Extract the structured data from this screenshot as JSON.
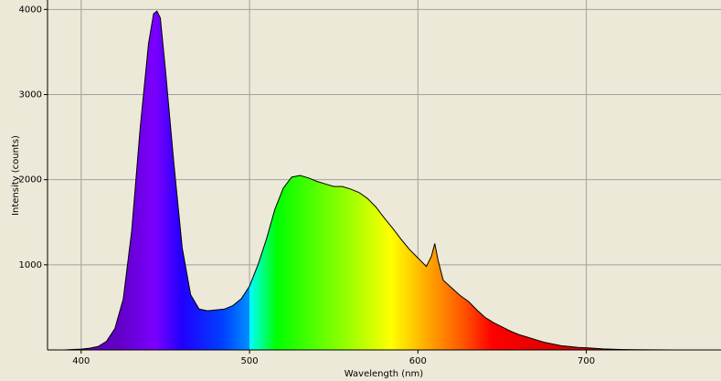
{
  "chart_data": {
    "type": "area",
    "xlabel": "Wavelength (nm)",
    "ylabel": "Intensity (counts)",
    "x": [
      380,
      385,
      390,
      395,
      400,
      405,
      410,
      415,
      420,
      425,
      430,
      435,
      440,
      443,
      445,
      447,
      450,
      455,
      460,
      465,
      470,
      475,
      480,
      485,
      490,
      495,
      500,
      505,
      510,
      515,
      520,
      525,
      530,
      535,
      540,
      545,
      550,
      555,
      560,
      565,
      570,
      575,
      580,
      585,
      590,
      595,
      600,
      605,
      608,
      610,
      612,
      615,
      620,
      625,
      630,
      635,
      640,
      645,
      650,
      655,
      660,
      665,
      670,
      675,
      680,
      685,
      690,
      695,
      700,
      710,
      720,
      730,
      740,
      750,
      760,
      780
    ],
    "values": [
      0,
      0,
      0,
      5,
      10,
      20,
      40,
      100,
      250,
      600,
      1400,
      2600,
      3600,
      3950,
      3980,
      3900,
      3300,
      2200,
      1200,
      650,
      480,
      460,
      470,
      480,
      520,
      600,
      750,
      1000,
      1300,
      1650,
      1900,
      2030,
      2050,
      2020,
      1980,
      1950,
      1920,
      1920,
      1890,
      1850,
      1780,
      1680,
      1550,
      1430,
      1300,
      1180,
      1080,
      980,
      1100,
      1250,
      1050,
      820,
      730,
      640,
      570,
      470,
      380,
      320,
      270,
      220,
      180,
      150,
      120,
      90,
      70,
      50,
      40,
      30,
      25,
      12,
      6,
      3,
      1,
      0,
      0,
      0
    ],
    "xlim": [
      380,
      780
    ],
    "ylim": [
      0,
      4100
    ],
    "xticks": [
      400,
      500,
      600,
      700
    ],
    "yticks": [
      1000,
      2000,
      3000,
      4000
    ],
    "grid": true
  }
}
